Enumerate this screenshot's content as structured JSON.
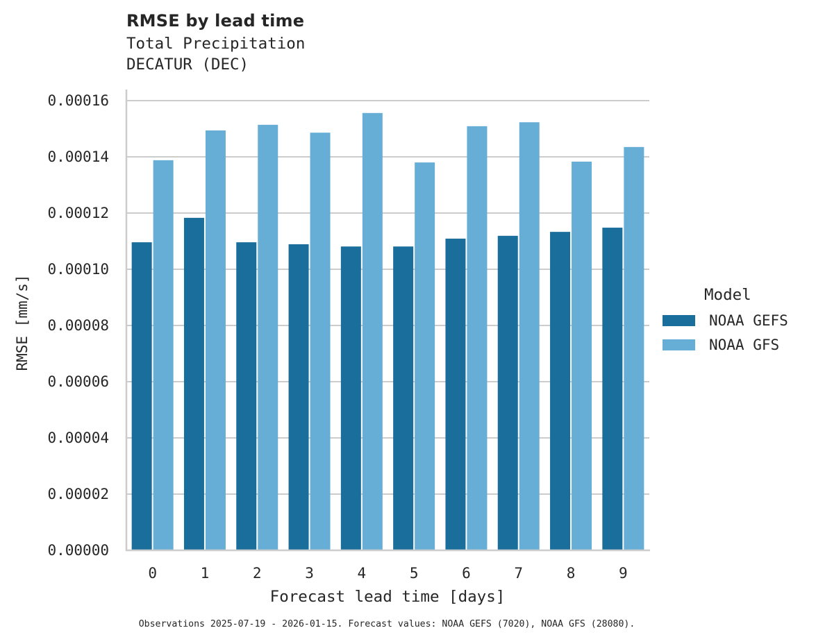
{
  "header": {
    "title": "RMSE by lead time",
    "subtitle_line1": "Total Precipitation",
    "subtitle_line2": "DECATUR (DEC)"
  },
  "axes": {
    "xlabel": "Forecast lead time [days]",
    "ylabel": "RMSE [mm/s]",
    "yticks": [
      "0.00000",
      "0.00002",
      "0.00004",
      "0.00006",
      "0.00008",
      "0.00010",
      "0.00012",
      "0.00014",
      "0.00016"
    ],
    "xticks": [
      "0",
      "1",
      "2",
      "3",
      "4",
      "5",
      "6",
      "7",
      "8",
      "9"
    ]
  },
  "legend": {
    "title": "Model",
    "items": [
      {
        "label": "NOAA GEFS",
        "color": "#1a6e9c"
      },
      {
        "label": "NOAA GFS",
        "color": "#67aed6"
      }
    ]
  },
  "footer": {
    "text": "Observations 2025-07-19 - 2026-01-15. Forecast values: NOAA GEFS (7020), NOAA GFS (28080)."
  },
  "colors": {
    "gefs": "#1a6e9c",
    "gfs": "#67aed6",
    "grid": "#cccccc",
    "spine": "#cccccc",
    "text": "#262626"
  },
  "chart_data": {
    "type": "bar",
    "title": "RMSE by lead time",
    "subtitle": "Total Precipitation — DECATUR (DEC)",
    "xlabel": "Forecast lead time [days]",
    "ylabel": "RMSE [mm/s]",
    "categories": [
      "0",
      "1",
      "2",
      "3",
      "4",
      "5",
      "6",
      "7",
      "8",
      "9"
    ],
    "series": [
      {
        "name": "NOAA GEFS",
        "color": "#1a6e9c",
        "values": [
          0.0001096,
          0.0001183,
          0.0001096,
          0.0001089,
          0.0001081,
          0.0001081,
          0.0001109,
          0.0001119,
          0.0001133,
          0.0001148
        ]
      },
      {
        "name": "NOAA GFS",
        "color": "#67aed6",
        "values": [
          0.0001388,
          0.0001494,
          0.0001514,
          0.0001486,
          0.0001556,
          0.000138,
          0.0001509,
          0.0001523,
          0.0001383,
          0.0001435
        ]
      }
    ],
    "ylim": [
      0,
      0.000164
    ],
    "yticks": [
      0,
      2e-05,
      4e-05,
      6e-05,
      8e-05,
      0.0001,
      0.00012,
      0.00014,
      0.00016
    ],
    "grid": "horizontal",
    "legend_title": "Model",
    "legend_position": "right",
    "footnote": "Observations 2025-07-19 - 2026-01-15. Forecast values: NOAA GEFS (7020), NOAA GFS (28080)."
  }
}
